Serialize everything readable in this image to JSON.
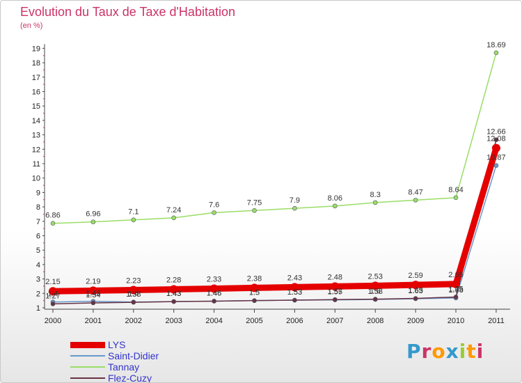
{
  "chart_data": {
    "type": "line",
    "title": "Evolution du Taux de Taxe d'Habitation",
    "subtitle": "(en %)",
    "x": [
      "2000",
      "2001",
      "2002",
      "2003",
      "2004",
      "2005",
      "2006",
      "2007",
      "2008",
      "2009",
      "2010",
      "2011"
    ],
    "ylim": [
      1,
      19
    ],
    "yticks": [
      1,
      2,
      3,
      4,
      5,
      6,
      7,
      8,
      9,
      10,
      11,
      12,
      13,
      14,
      15,
      16,
      17,
      18,
      19
    ],
    "grid": false,
    "legend_position": "bottom-left",
    "series": [
      {
        "name": "LYS",
        "color": "#e50000",
        "values": [
          2.15,
          2.19,
          2.23,
          2.28,
          2.33,
          2.38,
          2.43,
          2.48,
          2.53,
          2.59,
          2.65,
          12.08
        ],
        "labels": [
          "2.15",
          "2.19",
          "2.23",
          "2.28",
          "2.33",
          "2.38",
          "2.43",
          "2.48",
          "2.53",
          "2.59",
          "2.65",
          "12.08"
        ]
      },
      {
        "name": "Saint-Didier",
        "color": "#6699cc",
        "values": [
          1.4,
          1.45,
          1.4,
          1.43,
          1.46,
          1.5,
          1.53,
          1.55,
          1.58,
          1.63,
          1.68,
          10.87
        ],
        "labels": [
          "1.4",
          "1.45",
          "1.4",
          "1.43",
          "1.46",
          "1.5",
          "1.53",
          "1.55",
          "1.58",
          "1.63",
          "1.68",
          "10.87"
        ]
      },
      {
        "name": "Tannay",
        "color": "#99dd66",
        "values": [
          6.86,
          6.96,
          7.1,
          7.24,
          7.6,
          7.75,
          7.9,
          8.06,
          8.3,
          8.47,
          8.64,
          18.69
        ],
        "labels": [
          "6.86",
          "6.96",
          "7.1",
          "7.24",
          "7.6",
          "7.75",
          "7.9",
          "8.06",
          "8.3",
          "8.47",
          "8.64",
          "18.69"
        ]
      },
      {
        "name": "Flez-Cuzy",
        "color": "#663344",
        "values": [
          1.27,
          1.34,
          1.38,
          1.43,
          1.46,
          1.5,
          1.53,
          1.57,
          1.6,
          1.65,
          1.75,
          12.66
        ],
        "labels": [
          "1.27",
          "1.34",
          "1.38",
          "1.43",
          "1.46",
          "1.5",
          "1.53",
          "1.57",
          "1.6",
          "1.65",
          "1.75",
          "12.66"
        ]
      }
    ]
  },
  "logo": {
    "letters": [
      "P",
      "r",
      "o",
      "x",
      "i",
      "t",
      "i"
    ],
    "colors": [
      "#3399cc",
      "#cc3366",
      "#ff9900",
      "#3399cc",
      "#99cc33",
      "#ff9900",
      "#cc3366"
    ]
  }
}
